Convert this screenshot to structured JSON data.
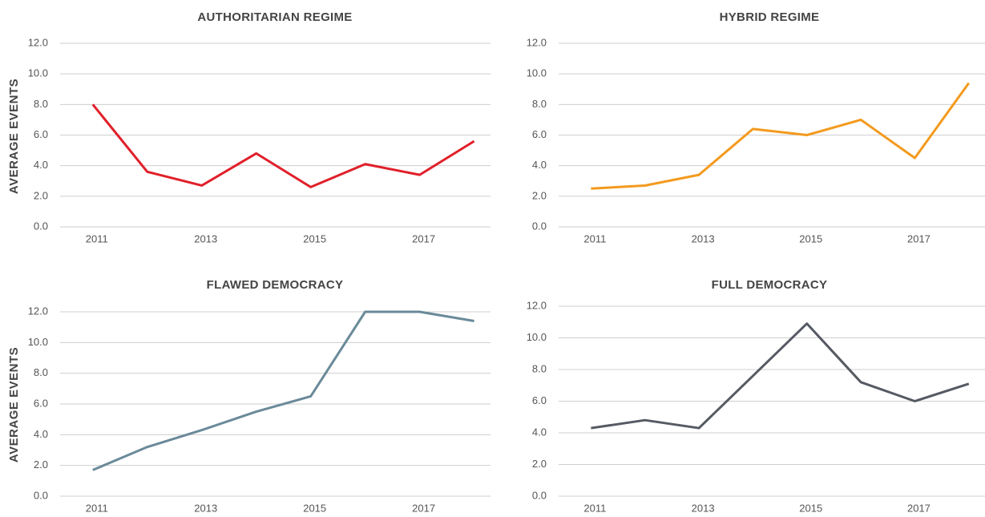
{
  "chart_data": [
    {
      "type": "line",
      "title": "AUTHORITARIAN REGIME",
      "ylabel": "AVERAGE EVENTS",
      "x": [
        2011,
        2012,
        2013,
        2014,
        2015,
        2016,
        2017,
        2018
      ],
      "values": [
        8.0,
        3.6,
        2.7,
        4.8,
        2.6,
        4.1,
        3.4,
        5.6
      ],
      "color": "#e0202a",
      "xlim": [
        2010.4,
        2018.3
      ],
      "xticks": [
        2011,
        2013,
        2015,
        2017
      ],
      "ylim": [
        0,
        12
      ],
      "yticks": [
        {
          "value": 0,
          "label": "0.0"
        },
        {
          "value": 2,
          "label": "2.0"
        },
        {
          "value": 4,
          "label": "4.0"
        },
        {
          "value": 6,
          "label": "6.0"
        },
        {
          "value": 8,
          "label": "8.0"
        },
        {
          "value": 10,
          "label": "10.0"
        },
        {
          "value": 12,
          "label": "12.0"
        }
      ],
      "grid": true
    },
    {
      "type": "line",
      "title": "HYBRID REGIME",
      "x": [
        2011,
        2012,
        2013,
        2014,
        2015,
        2016,
        2017,
        2018
      ],
      "values": [
        2.5,
        2.7,
        3.4,
        6.4,
        6.0,
        7.0,
        4.5,
        9.4
      ],
      "color": "#f39a1e",
      "xlim": [
        2010.4,
        2018.3
      ],
      "xticks": [
        2011,
        2013,
        2015,
        2017
      ],
      "ylim": [
        0,
        12
      ],
      "yticks": [
        {
          "value": 0,
          "label": "0.0"
        },
        {
          "value": 2,
          "label": "2.0"
        },
        {
          "value": 4,
          "label": "4.0"
        },
        {
          "value": 6,
          "label": "6.0"
        },
        {
          "value": 8,
          "label": "8.0"
        },
        {
          "value": 10,
          "label": "10.0"
        },
        {
          "value": 12,
          "label": "12.0"
        }
      ],
      "grid": true
    },
    {
      "type": "line",
      "title": "FLAWED DEMOCRACY",
      "ylabel": "AVERAGE EVENTS",
      "x": [
        2011,
        2012,
        2013,
        2014,
        2015,
        2016,
        2017,
        2018
      ],
      "values": [
        1.7,
        3.2,
        4.3,
        5.5,
        6.5,
        12.0,
        12.0,
        11.4
      ],
      "color": "#6a8a99",
      "xlim": [
        2010.4,
        2018.3
      ],
      "xticks": [
        2011,
        2013,
        2015,
        2017
      ],
      "ylim": [
        0,
        12
      ],
      "yticks": [
        {
          "value": 0,
          "label": "0.0"
        },
        {
          "value": 2,
          "label": "2.0"
        },
        {
          "value": 4,
          "label": "4.0"
        },
        {
          "value": 6,
          "label": "6.0"
        },
        {
          "value": 8,
          "label": "8.0"
        },
        {
          "value": 10,
          "label": "10.0"
        },
        {
          "value": 12,
          "label": "12.0"
        }
      ],
      "grid": true
    },
    {
      "type": "line",
      "title": "FULL DEMOCRACY",
      "x": [
        2011,
        2012,
        2013,
        2014,
        2015,
        2016,
        2017,
        2018
      ],
      "values": [
        4.3,
        4.8,
        4.3,
        7.6,
        10.9,
        7.2,
        6.0,
        7.1
      ],
      "color": "#555a63",
      "xlim": [
        2010.4,
        2018.3
      ],
      "xticks": [
        2011,
        2013,
        2015,
        2017
      ],
      "ylim": [
        0,
        12
      ],
      "yticks": [
        {
          "value": 0,
          "label": "0.0"
        },
        {
          "value": 2,
          "label": "2.0"
        },
        {
          "value": 4,
          "label": "4.0"
        },
        {
          "value": 6,
          "label": "6.0"
        },
        {
          "value": 8,
          "label": "8.0"
        },
        {
          "value": 10,
          "label": "10.0"
        },
        {
          "value": 12,
          "label": "12.0"
        }
      ],
      "grid": true
    }
  ]
}
